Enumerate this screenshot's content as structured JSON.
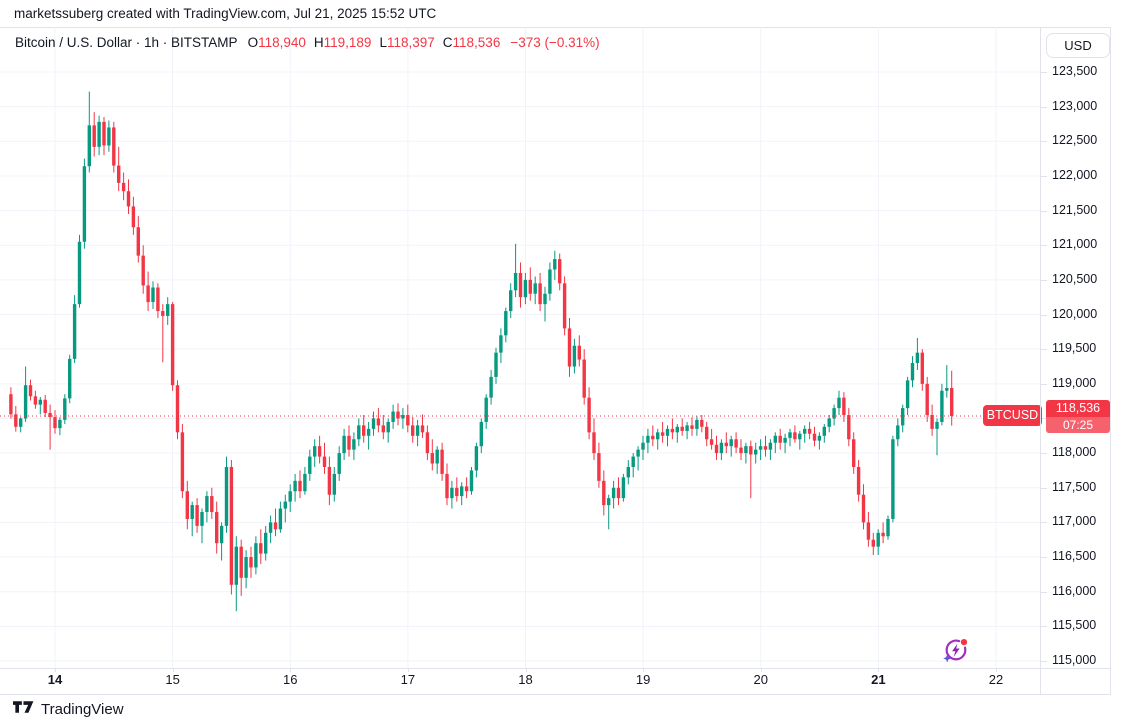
{
  "attribution": "marketssuberg created with TradingView.com, Jul 21, 2025 15:52 UTC",
  "legend": {
    "title": "Bitcoin / U.S. Dollar · 1h · BITSTAMP",
    "o_label": "O",
    "o": "118,940",
    "h_label": "H",
    "h": "119,189",
    "l_label": "L",
    "l": "118,397",
    "c_label": "C",
    "c": "118,536",
    "change": "−373 (−0.31%)"
  },
  "price_axis": {
    "currency": "USD"
  },
  "price_tag": {
    "symbol": "BTCUSD",
    "price": "118,536",
    "countdown": "07:25"
  },
  "footer": {
    "brand": "TradingView"
  },
  "icons": {
    "bottom_right": "spark-lightning-icon",
    "footer_logo": "tradingview-logo-icon"
  },
  "colors": {
    "up": "#089981",
    "down": "#F23645",
    "price_line": "#F23645",
    "tag_bg": "#F23645",
    "grid": "#F0F3FA",
    "frame": "#E0E3EB",
    "text": "#131722"
  },
  "chart_data": {
    "type": "candlestick",
    "title": "Bitcoin / U.S. Dollar",
    "interval": "1h",
    "exchange": "BITSTAMP",
    "quote_currency": "USD",
    "ohlc_last": {
      "open": 118940,
      "high": 119189,
      "low": 118397,
      "close": 118536,
      "change": -373,
      "change_pct": -0.31
    },
    "price_line_value": 118536,
    "countdown": "07:25",
    "y_axis": {
      "min": 115000,
      "max": 123500,
      "tick_step": 500,
      "ticks": [
        123500,
        123000,
        122500,
        122000,
        121500,
        121000,
        120500,
        120000,
        119500,
        119000,
        118500,
        118000,
        117500,
        117000,
        116500,
        116000,
        115500,
        115000
      ]
    },
    "x_axis": {
      "day_labels": [
        "14",
        "15",
        "16",
        "17",
        "18",
        "19",
        "20",
        "21",
        "22"
      ],
      "bold_labels": [
        "14",
        "21"
      ]
    },
    "candles": [
      [
        118850,
        118950,
        118500,
        118560
      ],
      [
        118560,
        118680,
        118310,
        118380
      ],
      [
        118380,
        118520,
        118300,
        118500
      ],
      [
        118500,
        119250,
        118450,
        118980
      ],
      [
        118980,
        119060,
        118760,
        118820
      ],
      [
        118820,
        118900,
        118640,
        118700
      ],
      [
        118700,
        118810,
        118560,
        118770
      ],
      [
        118770,
        118840,
        118520,
        118580
      ],
      [
        118580,
        118700,
        118050,
        118520
      ],
      [
        118520,
        118620,
        118280,
        118360
      ],
      [
        118360,
        118520,
        118260,
        118480
      ],
      [
        118480,
        118850,
        118420,
        118790
      ],
      [
        118790,
        119420,
        118720,
        119360
      ],
      [
        119360,
        120280,
        119300,
        120150
      ],
      [
        120150,
        121150,
        120100,
        121050
      ],
      [
        121050,
        122250,
        120950,
        122140
      ],
      [
        122140,
        123218,
        122050,
        122730
      ],
      [
        122730,
        122920,
        122280,
        122420
      ],
      [
        122420,
        122870,
        122300,
        122780
      ],
      [
        122780,
        122850,
        122300,
        122440
      ],
      [
        122440,
        122800,
        122350,
        122700
      ],
      [
        122700,
        122780,
        122050,
        122150
      ],
      [
        122150,
        122420,
        121780,
        121900
      ],
      [
        121900,
        122050,
        121650,
        121780
      ],
      [
        121780,
        121950,
        121450,
        121560
      ],
      [
        121560,
        121700,
        121150,
        121260
      ],
      [
        121260,
        121420,
        120750,
        120850
      ],
      [
        120850,
        121000,
        120300,
        120420
      ],
      [
        120420,
        120620,
        120050,
        120180
      ],
      [
        120180,
        120480,
        120080,
        120390
      ],
      [
        120390,
        120450,
        119950,
        120050
      ],
      [
        120050,
        120150,
        119310,
        119980
      ],
      [
        119980,
        120250,
        119850,
        120150
      ],
      [
        120150,
        120180,
        118900,
        118980
      ],
      [
        118980,
        119050,
        118200,
        118300
      ],
      [
        118300,
        118420,
        117350,
        117450
      ],
      [
        117450,
        117600,
        116900,
        117050
      ],
      [
        117050,
        117300,
        116800,
        117250
      ],
      [
        117250,
        117350,
        116850,
        116950
      ],
      [
        116950,
        117200,
        116700,
        117150
      ],
      [
        117150,
        117450,
        117000,
        117380
      ],
      [
        117380,
        117500,
        117050,
        117150
      ],
      [
        117150,
        117300,
        116550,
        116700
      ],
      [
        116700,
        117000,
        116450,
        116950
      ],
      [
        116950,
        117950,
        116850,
        117800
      ],
      [
        117800,
        117900,
        115960,
        116100
      ],
      [
        116100,
        116800,
        115720,
        116650
      ],
      [
        116650,
        116750,
        115940,
        116200
      ],
      [
        116200,
        116600,
        116050,
        116500
      ],
      [
        116500,
        116650,
        116200,
        116350
      ],
      [
        116350,
        116800,
        116250,
        116700
      ],
      [
        116700,
        116900,
        116400,
        116550
      ],
      [
        116550,
        116950,
        116450,
        116850
      ],
      [
        116850,
        117100,
        116700,
        117000
      ],
      [
        117000,
        117200,
        116800,
        116900
      ],
      [
        116900,
        117300,
        116850,
        117200
      ],
      [
        117200,
        117400,
        117000,
        117300
      ],
      [
        117300,
        117550,
        117150,
        117450
      ],
      [
        117450,
        117700,
        117300,
        117600
      ],
      [
        117600,
        117750,
        117350,
        117450
      ],
      [
        117450,
        117800,
        117400,
        117700
      ],
      [
        117700,
        118050,
        117600,
        117950
      ],
      [
        117950,
        118200,
        117800,
        118100
      ],
      [
        118100,
        118250,
        117850,
        117950
      ],
      [
        117950,
        118150,
        117700,
        117800
      ],
      [
        117800,
        117950,
        117250,
        117400
      ],
      [
        117400,
        117800,
        117300,
        117700
      ],
      [
        117700,
        118100,
        117600,
        118000
      ],
      [
        118000,
        118350,
        117900,
        118250
      ],
      [
        118250,
        118400,
        117950,
        118050
      ],
      [
        118050,
        118300,
        117900,
        118200
      ],
      [
        118200,
        118500,
        118100,
        118400
      ],
      [
        118400,
        118550,
        118150,
        118250
      ],
      [
        118250,
        118450,
        118050,
        118350
      ],
      [
        118350,
        118600,
        118250,
        118500
      ],
      [
        118500,
        118650,
        118300,
        118400
      ],
      [
        118400,
        118550,
        118200,
        118300
      ],
      [
        118300,
        118500,
        118150,
        118450
      ],
      [
        118450,
        118700,
        118350,
        118600
      ],
      [
        118600,
        118720,
        118400,
        118500
      ],
      [
        118500,
        118650,
        118350,
        118550
      ],
      [
        118550,
        118700,
        118300,
        118400
      ],
      [
        118400,
        118520,
        118150,
        118250
      ],
      [
        118250,
        118480,
        118100,
        118400
      ],
      [
        118400,
        118560,
        118220,
        118300
      ],
      [
        118300,
        118400,
        117900,
        118000
      ],
      [
        118000,
        118200,
        117750,
        117850
      ],
      [
        117850,
        118100,
        117700,
        118050
      ],
      [
        118050,
        118150,
        117600,
        117700
      ],
      [
        117700,
        117850,
        117250,
        117350
      ],
      [
        117350,
        117600,
        117200,
        117500
      ],
      [
        117500,
        117650,
        117300,
        117380
      ],
      [
        117380,
        117580,
        117250,
        117520
      ],
      [
        117520,
        117650,
        117350,
        117450
      ],
      [
        117450,
        117800,
        117400,
        117750
      ],
      [
        117750,
        118150,
        117650,
        118100
      ],
      [
        118100,
        118500,
        118000,
        118450
      ],
      [
        118450,
        118850,
        118350,
        118800
      ],
      [
        118800,
        119200,
        118700,
        119100
      ],
      [
        119100,
        119520,
        119000,
        119450
      ],
      [
        119450,
        119800,
        119300,
        119700
      ],
      [
        119700,
        120100,
        119600,
        120050
      ],
      [
        120050,
        120450,
        119950,
        120350
      ],
      [
        120350,
        121020,
        120250,
        120600
      ],
      [
        120600,
        120750,
        120100,
        120250
      ],
      [
        120250,
        120600,
        120150,
        120500
      ],
      [
        120500,
        120680,
        120200,
        120300
      ],
      [
        120300,
        120550,
        120150,
        120450
      ],
      [
        120450,
        120600,
        120050,
        120150
      ],
      [
        120150,
        120400,
        119900,
        120300
      ],
      [
        120300,
        120750,
        120200,
        120650
      ],
      [
        120650,
        120920,
        120500,
        120800
      ],
      [
        120800,
        120880,
        120350,
        120450
      ],
      [
        120450,
        120550,
        119700,
        119800
      ],
      [
        119800,
        119950,
        119100,
        119250
      ],
      [
        119250,
        119650,
        119150,
        119550
      ],
      [
        119550,
        119700,
        119250,
        119350
      ],
      [
        119350,
        119500,
        118700,
        118800
      ],
      [
        118800,
        118950,
        118200,
        118300
      ],
      [
        118300,
        118500,
        117900,
        118000
      ],
      [
        118000,
        118150,
        117500,
        117600
      ],
      [
        117600,
        117750,
        117100,
        117250
      ],
      [
        117250,
        117400,
        116900,
        117350
      ],
      [
        117350,
        117600,
        117200,
        117500
      ],
      [
        117500,
        117650,
        117250,
        117350
      ],
      [
        117350,
        117700,
        117300,
        117650
      ],
      [
        117650,
        117900,
        117550,
        117800
      ],
      [
        117800,
        118000,
        117650,
        117950
      ],
      [
        117950,
        118100,
        117750,
        118050
      ],
      [
        118050,
        118250,
        117900,
        118150
      ],
      [
        118150,
        118350,
        118000,
        118250
      ],
      [
        118250,
        118400,
        118100,
        118200
      ],
      [
        118200,
        118350,
        118050,
        118300
      ],
      [
        118300,
        118450,
        118150,
        118250
      ],
      [
        118250,
        118400,
        118100,
        118350
      ],
      [
        118350,
        118500,
        118200,
        118300
      ],
      [
        118300,
        118420,
        118150,
        118380
      ],
      [
        118380,
        118500,
        118250,
        118320
      ],
      [
        118320,
        118450,
        118200,
        118400
      ],
      [
        118400,
        118520,
        118250,
        118350
      ],
      [
        118350,
        118530,
        118250,
        118480
      ],
      [
        118480,
        118550,
        118300,
        118380
      ],
      [
        118380,
        118450,
        118100,
        118200
      ],
      [
        118200,
        118350,
        118050,
        118120
      ],
      [
        118120,
        118250,
        117900,
        118000
      ],
      [
        118000,
        118200,
        117900,
        118150
      ],
      [
        118150,
        118300,
        118000,
        118100
      ],
      [
        118100,
        118250,
        117950,
        118200
      ],
      [
        118200,
        118300,
        118000,
        118080
      ],
      [
        118080,
        118200,
        117900,
        118000
      ],
      [
        118000,
        118150,
        117850,
        118100
      ],
      [
        118100,
        118180,
        117350,
        117980
      ],
      [
        117980,
        118150,
        117850,
        118050
      ],
      [
        118050,
        118200,
        117900,
        118100
      ],
      [
        118100,
        118250,
        117950,
        118050
      ],
      [
        118050,
        118200,
        117900,
        118150
      ],
      [
        118150,
        118300,
        118000,
        118250
      ],
      [
        118250,
        118350,
        118050,
        118150
      ],
      [
        118150,
        118280,
        118000,
        118220
      ],
      [
        118220,
        118350,
        118100,
        118300
      ],
      [
        118300,
        118400,
        118150,
        118200
      ],
      [
        118200,
        118320,
        118050,
        118280
      ],
      [
        118280,
        118400,
        118150,
        118350
      ],
      [
        118350,
        118450,
        118200,
        118280
      ],
      [
        118280,
        118380,
        118100,
        118180
      ],
      [
        118180,
        118300,
        118050,
        118250
      ],
      [
        118250,
        118420,
        118150,
        118380
      ],
      [
        118380,
        118550,
        118300,
        118500
      ],
      [
        118500,
        118700,
        118400,
        118650
      ],
      [
        118650,
        118900,
        118550,
        118800
      ],
      [
        118800,
        118880,
        118450,
        118550
      ],
      [
        118550,
        118650,
        118100,
        118200
      ],
      [
        118200,
        118300,
        117700,
        117800
      ],
      [
        117800,
        117900,
        117300,
        117400
      ],
      [
        117400,
        117550,
        116900,
        117000
      ],
      [
        117000,
        117150,
        116650,
        116750
      ],
      [
        116750,
        116850,
        116530,
        116650
      ],
      [
        116650,
        116900,
        116530,
        116850
      ],
      [
        116850,
        117000,
        116700,
        116800
      ],
      [
        116800,
        117100,
        116750,
        117050
      ],
      [
        117050,
        118250,
        117000,
        118200
      ],
      [
        118200,
        118500,
        118100,
        118400
      ],
      [
        118400,
        118700,
        118300,
        118650
      ],
      [
        118650,
        119100,
        118550,
        119050
      ],
      [
        119050,
        119400,
        118950,
        119300
      ],
      [
        119300,
        119662,
        119200,
        119450
      ],
      [
        119450,
        119500,
        118900,
        119000
      ],
      [
        119000,
        119100,
        118450,
        118550
      ],
      [
        118550,
        118700,
        118250,
        118350
      ],
      [
        118350,
        118500,
        117970,
        118450
      ],
      [
        118450,
        119000,
        118400,
        118900
      ],
      [
        118900,
        119270,
        118800,
        118940
      ],
      [
        118940,
        119189,
        118397,
        118536
      ]
    ]
  }
}
